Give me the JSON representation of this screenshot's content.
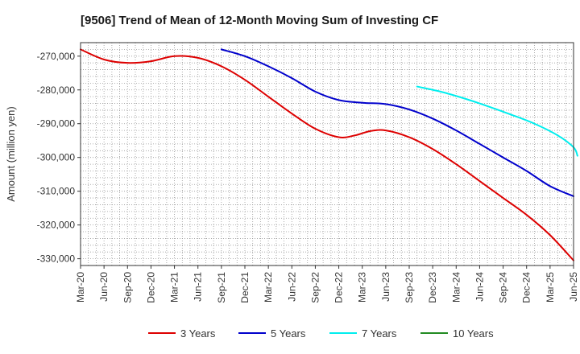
{
  "chart_data": {
    "type": "line",
    "title": "[9506]  Trend of Mean of 12-Month Moving Sum of Investing CF",
    "xlabel": "",
    "ylabel": "Amount (million yen)",
    "ylim": [
      -332000,
      -266000
    ],
    "yticks": [
      -270000,
      -280000,
      -290000,
      -300000,
      -310000,
      -320000,
      -330000
    ],
    "ytick_labels": [
      "-270,000",
      "-280,000",
      "-290,000",
      "-300,000",
      "-310,000",
      "-320,000",
      "-330,000"
    ],
    "x_start_index": 0,
    "x_end_index": 63,
    "xtick_labels": [
      "Mar-20",
      "Jun-20",
      "Sep-20",
      "Dec-20",
      "Mar-21",
      "Jun-21",
      "Sep-21",
      "Dec-21",
      "Mar-22",
      "Jun-22",
      "Sep-22",
      "Dec-22",
      "Mar-23",
      "Jun-23",
      "Sep-23",
      "Dec-23",
      "Mar-24",
      "Jun-24",
      "Sep-24",
      "Dec-24",
      "Mar-25",
      "Jun-25"
    ],
    "grid": true,
    "legend_position": "bottom",
    "series": [
      {
        "name": "3 Years",
        "color": "#dd0000",
        "points": [
          [
            0,
            -268000
          ],
          [
            3,
            -271000
          ],
          [
            6,
            -272000
          ],
          [
            9,
            -271500
          ],
          [
            12,
            -270000
          ],
          [
            15,
            -270500
          ],
          [
            18,
            -273000
          ],
          [
            21,
            -277000
          ],
          [
            24,
            -282000
          ],
          [
            27,
            -287000
          ],
          [
            30,
            -291500
          ],
          [
            33,
            -294000
          ],
          [
            35,
            -293500
          ],
          [
            37,
            -292200
          ],
          [
            39,
            -292000
          ],
          [
            42,
            -294000
          ],
          [
            45,
            -297500
          ],
          [
            48,
            -302000
          ],
          [
            51,
            -307000
          ],
          [
            54,
            -312000
          ],
          [
            57,
            -317000
          ],
          [
            60,
            -323000
          ],
          [
            63,
            -330500
          ]
        ]
      },
      {
        "name": "5 Years",
        "color": "#0000cc",
        "points": [
          [
            18,
            -268000
          ],
          [
            21,
            -270000
          ],
          [
            24,
            -273000
          ],
          [
            27,
            -276500
          ],
          [
            30,
            -280500
          ],
          [
            33,
            -283000
          ],
          [
            36,
            -283800
          ],
          [
            39,
            -284200
          ],
          [
            42,
            -285800
          ],
          [
            45,
            -288500
          ],
          [
            48,
            -292000
          ],
          [
            51,
            -296000
          ],
          [
            54,
            -300000
          ],
          [
            57,
            -304000
          ],
          [
            60,
            -308500
          ],
          [
            63,
            -311500
          ]
        ]
      },
      {
        "name": "7 Years",
        "color": "#00eeee",
        "points": [
          [
            43,
            -279000
          ],
          [
            46,
            -280500
          ],
          [
            49,
            -282500
          ],
          [
            52,
            -284800
          ],
          [
            55,
            -287300
          ],
          [
            58,
            -290000
          ],
          [
            61,
            -293500
          ],
          [
            63,
            -297000
          ],
          [
            63.5,
            -299500
          ]
        ]
      },
      {
        "name": "10 Years",
        "color": "#228b22",
        "points": []
      }
    ]
  }
}
